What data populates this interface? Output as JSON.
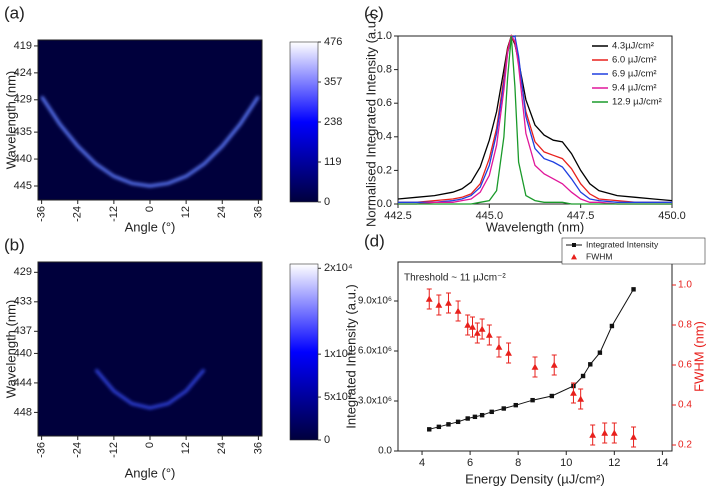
{
  "chart_data": [
    {
      "type": "heatmap",
      "label": "(a)",
      "x_label": "Angle (°)",
      "y_label": "Wavelength (nm)",
      "xlim": [
        -37.2,
        37.2
      ],
      "xticks": [
        -36,
        -24,
        -12,
        0,
        12,
        24,
        36
      ],
      "ylim": [
        447.6,
        417.9
      ],
      "yticks": [
        419,
        424,
        429,
        435,
        440,
        445
      ],
      "colormap": [
        "#00003c",
        "#0000ff",
        "#ffffff"
      ],
      "zlim": [
        0,
        476
      ],
      "zticks": [
        0,
        119,
        238,
        357,
        476
      ],
      "series": [
        {
          "color": "#5f7dff",
          "x": [
            -36,
            -30,
            -24,
            -18,
            -12,
            -6,
            0,
            6,
            12,
            18,
            24,
            30,
            36
          ],
          "values": [
            428.4,
            433.5,
            437.6,
            440.9,
            443.2,
            444.5,
            445.0,
            444.5,
            443.2,
            440.9,
            437.6,
            433.5,
            428.4
          ]
        }
      ]
    },
    {
      "type": "heatmap",
      "label": "(b)",
      "x_label": "Angle (°)",
      "y_label": "Wavelength (nm)",
      "xlim": [
        -37.2,
        37.2
      ],
      "xticks": [
        -36,
        -24,
        -12,
        0,
        12,
        24,
        36
      ],
      "ylim": [
        451.2,
        427.6
      ],
      "yticks": [
        429,
        433,
        437,
        440,
        444,
        448
      ],
      "colormap": [
        "#00003c",
        "#0000ff",
        "#ffffff"
      ],
      "zlim": [
        0,
        20500
      ],
      "zticks": [
        0,
        {
          "value": 5000,
          "label": "5x10³"
        },
        {
          "value": 10000,
          "label": "1x10⁴"
        },
        {
          "value": 20000,
          "label": "2x10⁴"
        }
      ],
      "series": [
        {
          "color": "#3045e0",
          "x": [
            -18,
            -12,
            -6,
            0,
            6,
            12,
            18
          ],
          "values": [
            442.2,
            445.1,
            446.8,
            447.4,
            446.8,
            445.1,
            442.2
          ]
        }
      ]
    },
    {
      "type": "line",
      "label": "(c)",
      "x_label": "Wavelength (nm)",
      "y_label": "Normalised Integrated Intensity (a.u.)",
      "xlim": [
        442.5,
        450
      ],
      "xticks": [
        442.5,
        {
          "value": 445,
          "label": "445.0"
        },
        447.5,
        {
          "value": 450,
          "label": "450.0"
        }
      ],
      "ylim": [
        0,
        1
      ],
      "yticks": [
        {
          "value": 0,
          "label": "0.0"
        },
        0.2,
        0.4,
        0.6,
        0.8,
        {
          "value": 1,
          "label": "1.0"
        }
      ],
      "legend": "upper right",
      "x": [
        442.5,
        443,
        443.5,
        444,
        444.25,
        444.5,
        444.75,
        445,
        445.2,
        445.4,
        445.5,
        445.6,
        445.7,
        445.8,
        446,
        446.25,
        446.5,
        446.75,
        447,
        447.25,
        447.5,
        447.75,
        448,
        448.5,
        449,
        449.5,
        450
      ],
      "series": [
        {
          "name": "4.3µJ/cm²",
          "color": "#000000",
          "values": [
            0.03,
            0.04,
            0.05,
            0.07,
            0.09,
            0.13,
            0.22,
            0.38,
            0.55,
            0.8,
            0.93,
            1.0,
            0.95,
            0.85,
            0.62,
            0.47,
            0.41,
            0.38,
            0.37,
            0.3,
            0.2,
            0.12,
            0.08,
            0.05,
            0.04,
            0.03,
            0.02
          ]
        },
        {
          "name": "6.0 µJ/cm²",
          "color": "#e8201c",
          "values": [
            0.01,
            0.01,
            0.02,
            0.03,
            0.04,
            0.06,
            0.12,
            0.27,
            0.45,
            0.75,
            0.92,
            1.0,
            0.96,
            0.84,
            0.55,
            0.37,
            0.31,
            0.29,
            0.27,
            0.21,
            0.12,
            0.06,
            0.03,
            0.02,
            0.01,
            0.01,
            0.01
          ]
        },
        {
          "name": "6.9 µJ/cm²",
          "color": "#1f3fe0",
          "values": [
            0.01,
            0.01,
            0.01,
            0.02,
            0.03,
            0.05,
            0.1,
            0.23,
            0.42,
            0.72,
            0.9,
            0.99,
            1.0,
            0.88,
            0.52,
            0.33,
            0.27,
            0.25,
            0.22,
            0.15,
            0.07,
            0.03,
            0.02,
            0.01,
            0.01,
            0.01,
            0.01
          ]
        },
        {
          "name": "9.4 µJ/cm²",
          "color": "#e0179a",
          "values": [
            0,
            0,
            0.01,
            0.01,
            0.02,
            0.03,
            0.07,
            0.17,
            0.35,
            0.68,
            0.9,
            1.0,
            0.97,
            0.82,
            0.42,
            0.23,
            0.18,
            0.15,
            0.12,
            0.07,
            0.03,
            0.01,
            0.01,
            0,
            0,
            0,
            0
          ]
        },
        {
          "name": "12.9 µJ/cm²",
          "color": "#1a9a2a",
          "values": [
            0,
            0,
            0,
            0,
            0,
            0,
            0.01,
            0.02,
            0.08,
            0.4,
            0.75,
            1.0,
            0.7,
            0.25,
            0.05,
            0.02,
            0.01,
            0.01,
            0.01,
            0,
            0,
            0,
            0,
            0,
            0,
            0,
            0
          ]
        }
      ]
    },
    {
      "type": "scatter",
      "label": "(d)",
      "x_label": "Energy Density (µJ/cm²)",
      "y_label": "Integrated Intensity (a.u.)",
      "y2_label": "FWHM (nm)",
      "annotation": "Threshold ~ 11 µJcm⁻²",
      "legend": "above right",
      "xlim": [
        3,
        14.4
      ],
      "xticks": [
        4,
        6,
        8,
        10,
        12,
        14
      ],
      "ylim": [
        0,
        11340000
      ],
      "yticks": [
        {
          "value": 0,
          "label": "0.0"
        },
        {
          "value": 3000000,
          "label": "3.0x10⁶"
        },
        {
          "value": 6000000,
          "label": "6.0x10⁶"
        },
        {
          "value": 9000000,
          "label": "9.0x10⁶"
        }
      ],
      "y2lim": [
        0.17,
        1.115
      ],
      "y2ticks": [
        0.2,
        0.4,
        0.6,
        0.8,
        {
          "value": 1,
          "label": "1.0"
        }
      ],
      "series": [
        {
          "name": "Integrated Intensity",
          "color": "#111111",
          "marker": "square",
          "line": true,
          "x": [
            4.3,
            4.7,
            5.1,
            5.5,
            5.9,
            6.2,
            6.5,
            6.9,
            7.4,
            7.9,
            8.6,
            9.4,
            10.3,
            10.7,
            11.0,
            11.4,
            11.9,
            12.8
          ],
          "values": [
            1300000,
            1450000,
            1600000,
            1750000,
            1950000,
            2050000,
            2150000,
            2350000,
            2550000,
            2750000,
            3050000,
            3300000,
            3900000,
            4500000,
            5200000,
            5900000,
            7500000,
            9700000
          ]
        },
        {
          "name": "FWHM",
          "color": "#e8201c",
          "marker": "triangle",
          "line": false,
          "axis": "y2",
          "x": [
            4.3,
            4.7,
            5.1,
            5.5,
            5.9,
            6.1,
            6.3,
            6.5,
            6.8,
            7.2,
            7.6,
            8.7,
            9.5,
            10.3,
            10.6,
            11.1,
            11.6,
            12.0,
            12.8
          ],
          "values": [
            0.93,
            0.9,
            0.91,
            0.87,
            0.8,
            0.79,
            0.76,
            0.78,
            0.75,
            0.69,
            0.66,
            0.59,
            0.6,
            0.46,
            0.43,
            0.25,
            0.26,
            0.26,
            0.24
          ],
          "errors": [
            0.05,
            0.05,
            0.05,
            0.05,
            0.05,
            0.05,
            0.05,
            0.05,
            0.05,
            0.05,
            0.05,
            0.05,
            0.05,
            0.05,
            0.05,
            0.05,
            0.05,
            0.05,
            0.05
          ]
        }
      ]
    }
  ]
}
